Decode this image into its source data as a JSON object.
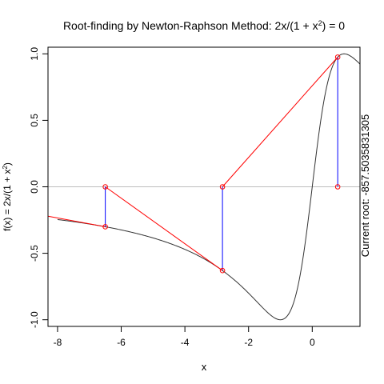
{
  "chart_data": {
    "type": "line",
    "title_prefix": "Root-finding by Newton-Raphson Method: ",
    "xlabel": "x",
    "ylabel_prefix": "f(x) = 2x",
    "right_label": "Current root: -857.5035831305",
    "xlim": [
      -8.3,
      1.5
    ],
    "ylim": [
      -1.05,
      1.05
    ],
    "x_ticks": [
      -8,
      -6,
      -4,
      -2,
      0
    ],
    "y_ticks": [
      -1.0,
      -0.5,
      0.0,
      0.5,
      1.0
    ],
    "y_tick_labels": [
      "-1.0",
      "-0.5",
      "0.0",
      "0.5",
      "1.0"
    ],
    "function": "2x/(1+x^2)",
    "curve_x_range": [
      -8,
      1.5
    ],
    "newton_iterates": [
      0.8,
      -2.82,
      -6.5
    ],
    "tangent_extension_x": -8.3,
    "colors": {
      "curve": "#333333",
      "tangent": "#ff0000",
      "vertical": "#0000ff",
      "points": "#ff0000",
      "zero_line": "#bebebe"
    }
  }
}
